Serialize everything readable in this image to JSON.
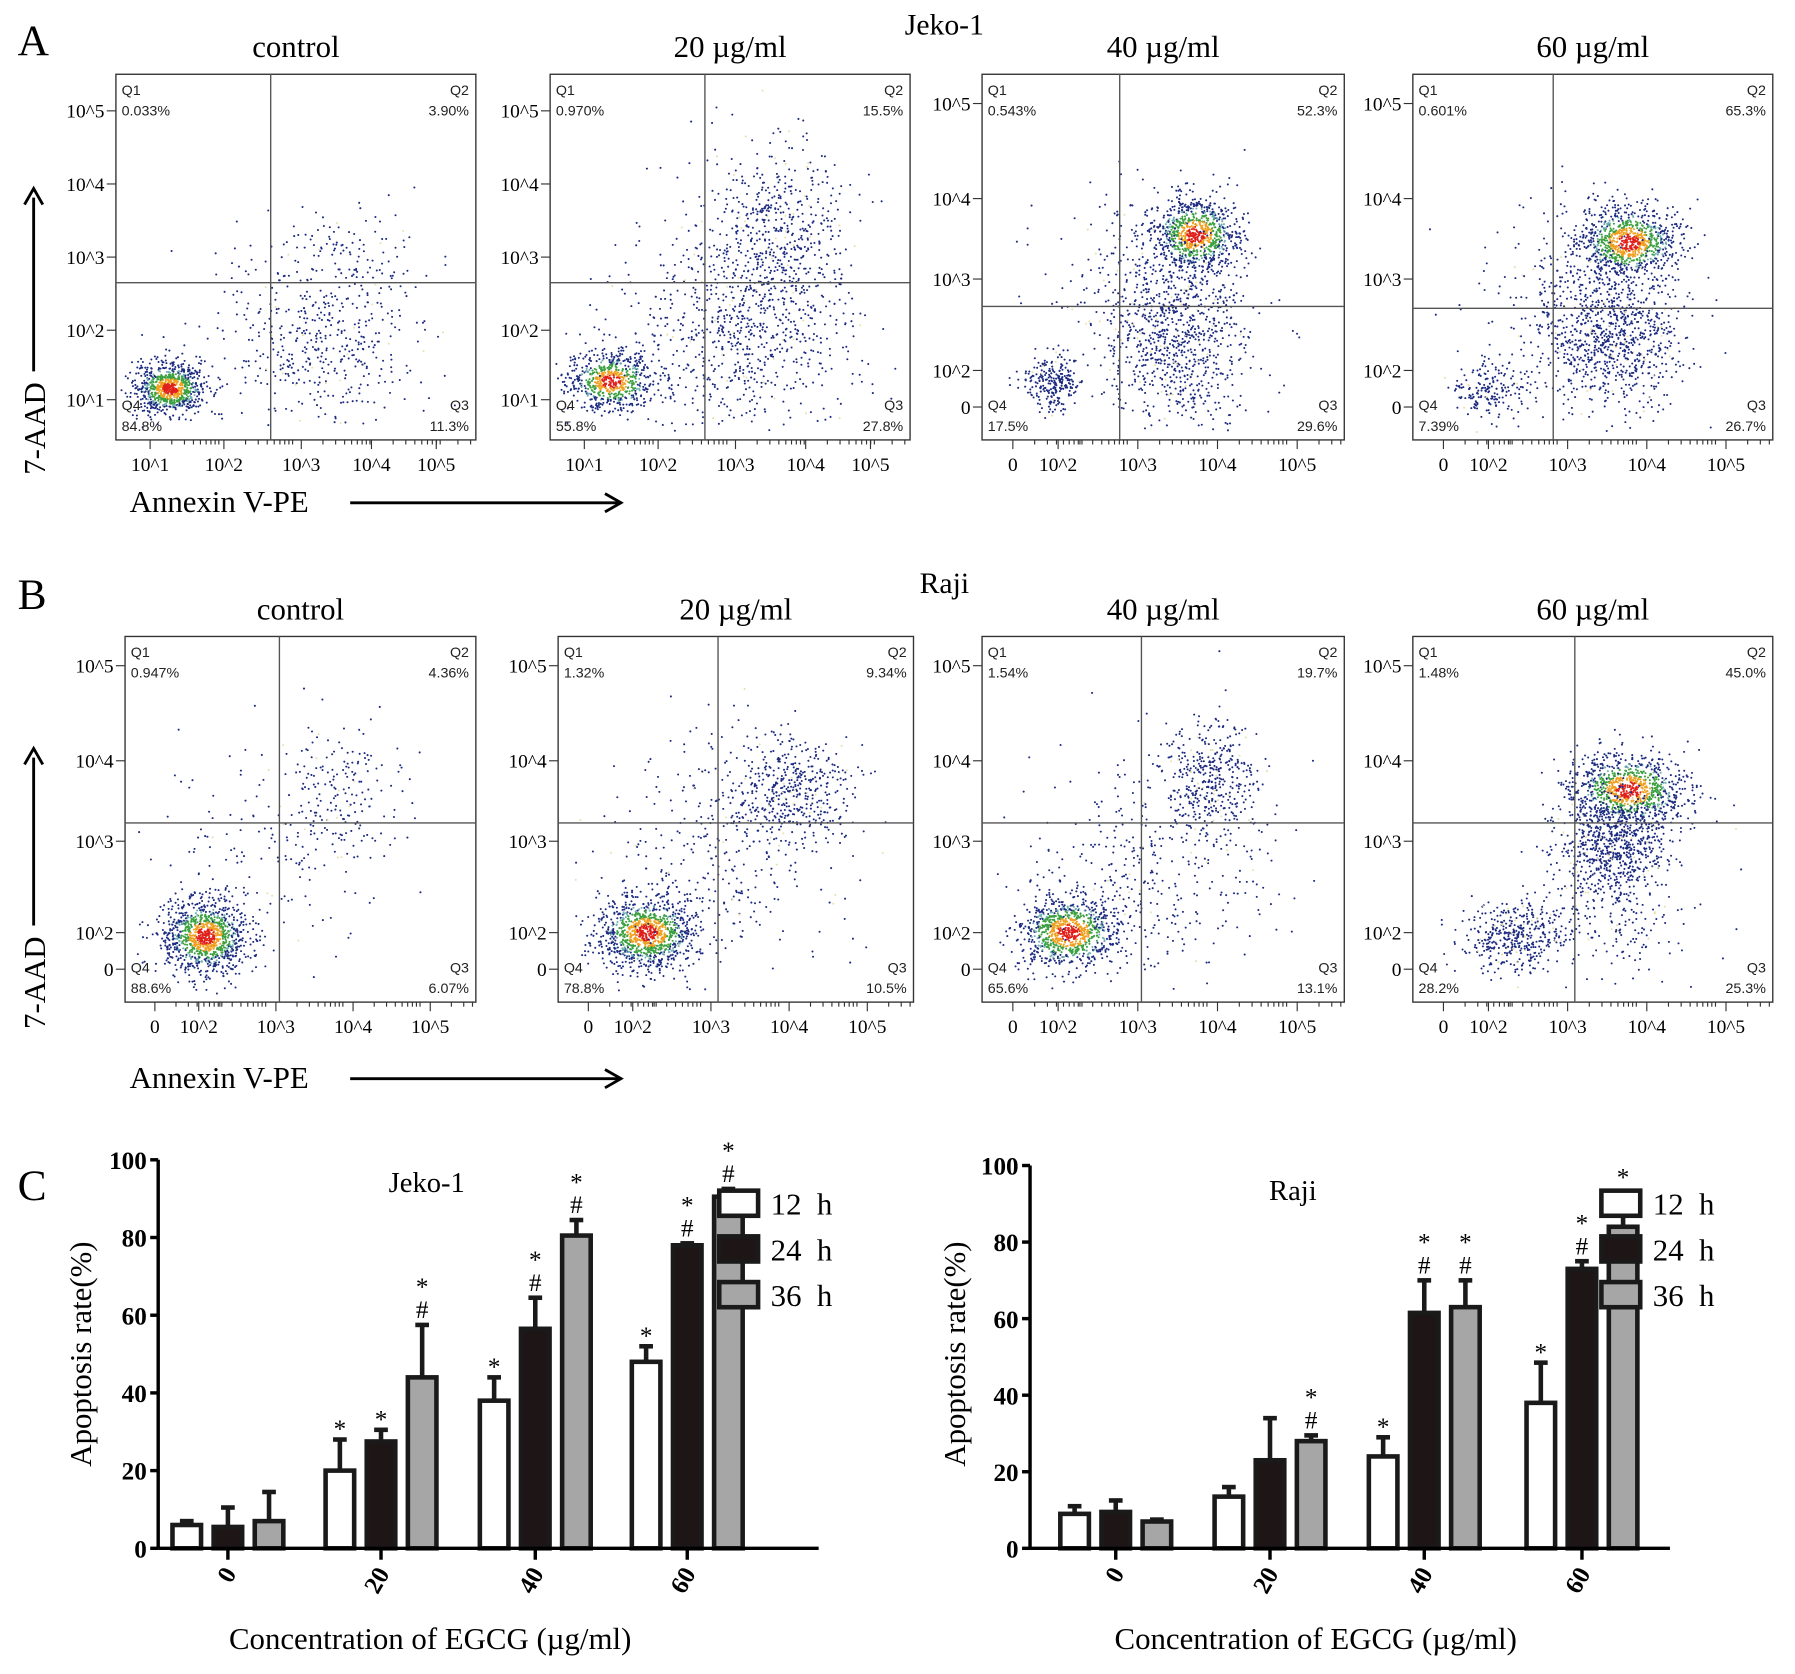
{
  "figure": {
    "panel_labels": [
      "A",
      "B",
      "C"
    ],
    "row_titles": [
      "Jeko-1",
      "Raji"
    ],
    "conditions": [
      "control",
      "20 µg/ml",
      "40 µg/ml",
      "60 µg/ml"
    ],
    "y_axis_label": "7-AAD",
    "x_axis_label": "Annexin V-PE",
    "quadrant_names": [
      "Q1",
      "Q2",
      "Q3",
      "Q4"
    ]
  },
  "tick_sets": {
    "log": {
      "x": [
        "10^1",
        "10^2",
        "10^3",
        "10^4",
        "10^5"
      ],
      "y": [
        "10^5",
        "10^4",
        "10^3",
        "10^2",
        "10^1"
      ]
    },
    "biex": {
      "x": [
        "0",
        "10^2",
        "10^3",
        "10^4",
        "10^5"
      ],
      "y": [
        "10^5",
        "10^4",
        "10^3",
        "10^2",
        "0"
      ]
    }
  },
  "flow_panels": [
    {
      "row": 0,
      "condition": "control",
      "ticks": "log",
      "quadrants": {
        "Q1": "0.033%",
        "Q2": "3.90%",
        "Q3": "11.3%",
        "Q4": "84.8%"
      }
    },
    {
      "row": 0,
      "condition": "20 µg/ml",
      "ticks": "log",
      "quadrants": {
        "Q1": "0.970%",
        "Q2": "15.5%",
        "Q3": "27.8%",
        "Q4": "55.8%"
      }
    },
    {
      "row": 0,
      "condition": "40 µg/ml",
      "ticks": "biex",
      "quadrants": {
        "Q1": "0.543%",
        "Q2": "52.3%",
        "Q3": "29.6%",
        "Q4": "17.5%"
      }
    },
    {
      "row": 0,
      "condition": "60 µg/ml",
      "ticks": "biex",
      "quadrants": {
        "Q1": "0.601%",
        "Q2": "65.3%",
        "Q3": "26.7%",
        "Q4": "7.39%"
      }
    },
    {
      "row": 1,
      "condition": "control",
      "ticks": "biex",
      "quadrants": {
        "Q1": "0.947%",
        "Q2": "4.36%",
        "Q3": "6.07%",
        "Q4": "88.6%"
      }
    },
    {
      "row": 1,
      "condition": "20 µg/ml",
      "ticks": "biex",
      "quadrants": {
        "Q1": "1.32%",
        "Q2": "9.34%",
        "Q3": "10.5%",
        "Q4": "78.8%"
      }
    },
    {
      "row": 1,
      "condition": "40 µg/ml",
      "ticks": "biex",
      "quadrants": {
        "Q1": "1.54%",
        "Q2": "19.7%",
        "Q3": "13.1%",
        "Q4": "65.6%"
      }
    },
    {
      "row": 1,
      "condition": "60 µg/ml",
      "ticks": "biex",
      "quadrants": {
        "Q1": "1.48%",
        "Q2": "45.0%",
        "Q3": "25.3%",
        "Q4": "28.2%"
      }
    }
  ],
  "colors": {
    "dot": "#1c2a80",
    "bar_12h": "#ffffff",
    "bar_24h": "#1e1616",
    "bar_36h": "#a6a6a6",
    "quad_line": "#555555"
  },
  "chart_data": [
    {
      "type": "bar",
      "title": "Jeko-1",
      "xlabel": "Concentration of EGCG (µg/ml)",
      "ylabel": "Apoptosis rate(%)",
      "ylim": [
        0,
        100
      ],
      "yticks": [
        "0",
        "20",
        "40",
        "60",
        "80",
        "100"
      ],
      "categories": [
        "0",
        "20",
        "40",
        "60"
      ],
      "legend_position": "top-right",
      "series": [
        {
          "name": "12  h",
          "values": [
            6,
            20,
            38,
            48
          ],
          "err_top": [
            7,
            28,
            44,
            52
          ],
          "marks": [
            "",
            "*",
            "*",
            "*"
          ]
        },
        {
          "name": "24  h",
          "values": [
            5.5,
            27.5,
            56.5,
            78
          ],
          "err_top": [
            10.5,
            30.5,
            64.5,
            78.5
          ],
          "marks": [
            "",
            "*",
            "*#",
            "*#"
          ]
        },
        {
          "name": "36  h",
          "values": [
            7,
            44,
            80.5,
            90.5
          ],
          "err_top": [
            14.5,
            57.5,
            84.5,
            92.5
          ],
          "marks": [
            "",
            "*#",
            "*#",
            "*#"
          ]
        }
      ]
    },
    {
      "type": "bar",
      "title": "Raji",
      "xlabel": "Concentration of EGCG (µg/ml)",
      "ylabel": "Apoptosis rate(%)",
      "ylim": [
        0,
        100
      ],
      "yticks": [
        "0",
        "20",
        "40",
        "60",
        "80",
        "100"
      ],
      "categories": [
        "0",
        "20",
        "40",
        "60"
      ],
      "legend_position": "top-right",
      "series": [
        {
          "name": "12  h",
          "values": [
            9,
            13.5,
            24,
            38
          ],
          "err_top": [
            11,
            16,
            29,
            48.5
          ],
          "marks": [
            "",
            "",
            "*",
            "*"
          ]
        },
        {
          "name": "24  h",
          "values": [
            9.5,
            23,
            61.5,
            73
          ],
          "err_top": [
            12.5,
            34,
            70,
            75
          ],
          "marks": [
            "",
            "",
            "*#",
            "*#"
          ]
        },
        {
          "name": "36  h",
          "values": [
            7,
            28,
            63,
            84
          ],
          "err_top": [
            7.5,
            29.5,
            70,
            87
          ],
          "marks": [
            "",
            "*#",
            "*#",
            "*#"
          ]
        }
      ]
    }
  ]
}
